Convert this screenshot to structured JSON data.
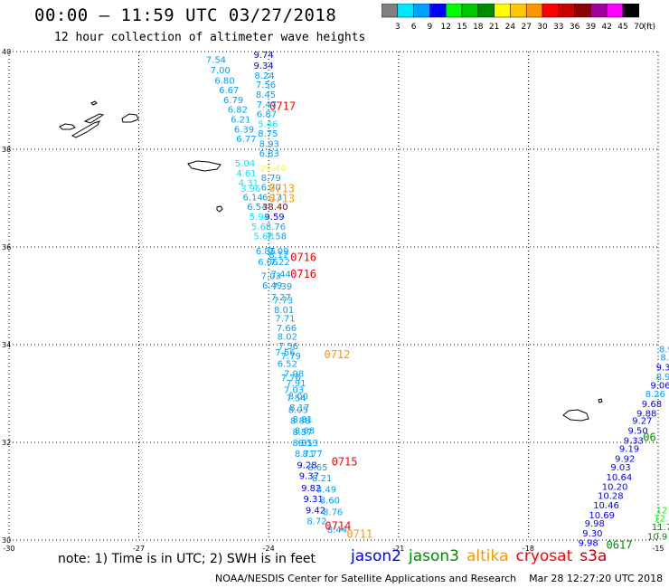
{
  "header": {
    "title": "00:00 – 11:59 UTC 03/27/2018",
    "subtitle": "12 hour collection of altimeter wave heights"
  },
  "color_scale": {
    "unit": "(ft)",
    "bins": [
      {
        "label": "3",
        "color": "#808080"
      },
      {
        "label": "6",
        "color": "#00e8ff"
      },
      {
        "label": "9",
        "color": "#00a0ff"
      },
      {
        "label": "12",
        "color": "#0000ff"
      },
      {
        "label": "15",
        "color": "#00ff00"
      },
      {
        "label": "18",
        "color": "#00c800"
      },
      {
        "label": "21",
        "color": "#008c00"
      },
      {
        "label": "24",
        "color": "#ffff00"
      },
      {
        "label": "27",
        "color": "#ffc800"
      },
      {
        "label": "30",
        "color": "#ff9600"
      },
      {
        "label": "33",
        "color": "#ff0000"
      },
      {
        "label": "36",
        "color": "#c80000"
      },
      {
        "label": "39",
        "color": "#8c0000"
      },
      {
        "label": "42",
        "color": "#a000a0"
      },
      {
        "label": "45",
        "color": "#ff00ff"
      },
      {
        "label": "70",
        "color": "#000000"
      }
    ]
  },
  "map": {
    "lat_range": [
      30,
      40
    ],
    "lon_range": [
      -30,
      -15
    ],
    "lat_ticks": [
      "40",
      "38",
      "36",
      "34",
      "32",
      "30"
    ],
    "lon_ticks": [
      "-30",
      "-27",
      "-24",
      "-21",
      "-18",
      "-15"
    ]
  },
  "measurements": [
    {
      "v": "9.74",
      "lon": -24.35,
      "lat": 39.94,
      "c": "#0000ff"
    },
    {
      "v": "7.54",
      "lon": -25.45,
      "lat": 39.84,
      "c": "#00a0ff"
    },
    {
      "v": "9.34",
      "lon": -24.35,
      "lat": 39.72,
      "c": "#0000ff"
    },
    {
      "v": "7.00",
      "lon": -25.35,
      "lat": 39.63,
      "c": "#00a0ff"
    },
    {
      "v": "8.24",
      "lon": -24.33,
      "lat": 39.52,
      "c": "#00a0ff"
    },
    {
      "v": "6.80",
      "lon": -25.25,
      "lat": 39.42,
      "c": "#00a0ff"
    },
    {
      "v": "7.56",
      "lon": -24.3,
      "lat": 39.33,
      "c": "#00a0ff"
    },
    {
      "v": "6.67",
      "lon": -25.15,
      "lat": 39.22,
      "c": "#00a0ff"
    },
    {
      "v": "8.45",
      "lon": -24.3,
      "lat": 39.13,
      "c": "#00a0ff"
    },
    {
      "v": "6.79",
      "lon": -25.05,
      "lat": 39.02,
      "c": "#00a0ff"
    },
    {
      "v": "7.47",
      "lon": -24.28,
      "lat": 38.93,
      "c": "#00a0ff"
    },
    {
      "v": "6.82",
      "lon": -24.95,
      "lat": 38.82,
      "c": "#00a0ff"
    },
    {
      "v": "6.87",
      "lon": -24.28,
      "lat": 38.73,
      "c": "#00a0ff"
    },
    {
      "v": "6.21",
      "lon": -24.88,
      "lat": 38.62,
      "c": "#00a0ff"
    },
    {
      "v": "5.46",
      "lon": -24.25,
      "lat": 38.53,
      "c": "#00e8ff"
    },
    {
      "v": "6.39",
      "lon": -24.8,
      "lat": 38.42,
      "c": "#00a0ff"
    },
    {
      "v": "8.75",
      "lon": -24.25,
      "lat": 38.33,
      "c": "#00a0ff"
    },
    {
      "v": "6.77",
      "lon": -24.75,
      "lat": 38.22,
      "c": "#00a0ff"
    },
    {
      "v": "8.93",
      "lon": -24.22,
      "lat": 38.12,
      "c": "#00a0ff"
    },
    {
      "v": "6.83",
      "lon": -24.22,
      "lat": 37.93,
      "c": "#00a0ff"
    },
    {
      "v": "5.04",
      "lon": -24.78,
      "lat": 37.72,
      "c": "#00e8ff"
    },
    {
      "v": "22.44",
      "lon": -24.2,
      "lat": 37.62,
      "c": "#ffff00"
    },
    {
      "v": "4.61",
      "lon": -24.75,
      "lat": 37.52,
      "c": "#00e8ff"
    },
    {
      "v": "8.79",
      "lon": -24.18,
      "lat": 37.43,
      "c": "#00a0ff"
    },
    {
      "v": "4.31",
      "lon": -24.7,
      "lat": 37.32,
      "c": "#00e8ff"
    },
    {
      "v": "6.70",
      "lon": -24.18,
      "lat": 37.23,
      "c": "#00a0ff"
    },
    {
      "v": "3.96",
      "lon": -24.65,
      "lat": 37.2,
      "c": "#00e8ff"
    },
    {
      "v": "6.13",
      "lon": -24.15,
      "lat": 37.03,
      "c": "#00a0ff"
    },
    {
      "v": "6.14",
      "lon": -24.6,
      "lat": 37.03,
      "c": "#00a0ff"
    },
    {
      "v": "38.40",
      "lon": -24.15,
      "lat": 36.83,
      "c": "#8c0000"
    },
    {
      "v": "6.54",
      "lon": -24.5,
      "lat": 36.83,
      "c": "#00a0ff"
    },
    {
      "v": "9.59",
      "lon": -24.1,
      "lat": 36.63,
      "c": "#0000ff"
    },
    {
      "v": "5.94",
      "lon": -24.45,
      "lat": 36.63,
      "c": "#00e8ff"
    },
    {
      "v": "8.76",
      "lon": -24.07,
      "lat": 36.43,
      "c": "#00a0ff"
    },
    {
      "v": "5.68",
      "lon": -24.4,
      "lat": 36.43,
      "c": "#00e8ff"
    },
    {
      "v": "7.58",
      "lon": -24.05,
      "lat": 36.23,
      "c": "#00a0ff"
    },
    {
      "v": "5.68",
      "lon": -24.35,
      "lat": 36.23,
      "c": "#00e8ff"
    },
    {
      "v": "7.09",
      "lon": -24.0,
      "lat": 35.93,
      "c": "#00a0ff"
    },
    {
      "v": "6.85",
      "lon": -24.3,
      "lat": 35.93,
      "c": "#00a0ff"
    },
    {
      "v": "8.12",
      "lon": -24.0,
      "lat": 35.85,
      "c": "#00a0ff"
    },
    {
      "v": "6.06",
      "lon": -24.25,
      "lat": 35.7,
      "c": "#00a0ff"
    },
    {
      "v": "7.22",
      "lon": -23.97,
      "lat": 35.7,
      "c": "#00a0ff"
    },
    {
      "v": "7.44",
      "lon": -23.95,
      "lat": 35.45,
      "c": "#00a0ff"
    },
    {
      "v": "7.03",
      "lon": -24.18,
      "lat": 35.42,
      "c": "#00a0ff"
    },
    {
      "v": "6.49",
      "lon": -24.15,
      "lat": 35.22,
      "c": "#00a0ff"
    },
    {
      "v": "7.39",
      "lon": -23.92,
      "lat": 35.2,
      "c": "#00a0ff"
    },
    {
      "v": "7.27",
      "lon": -23.95,
      "lat": 34.98,
      "c": "#00a0ff"
    },
    {
      "v": "7.73",
      "lon": -23.9,
      "lat": 34.92,
      "c": "#00a0ff"
    },
    {
      "v": "8.01",
      "lon": -23.88,
      "lat": 34.72,
      "c": "#00a0ff"
    },
    {
      "v": "7.71",
      "lon": -23.85,
      "lat": 34.55,
      "c": "#00a0ff"
    },
    {
      "v": "7.66",
      "lon": -23.82,
      "lat": 34.35,
      "c": "#00a0ff"
    },
    {
      "v": "8.02",
      "lon": -23.8,
      "lat": 34.18,
      "c": "#00a0ff"
    },
    {
      "v": "7.56",
      "lon": -23.78,
      "lat": 33.98,
      "c": "#00a0ff"
    },
    {
      "v": "7.56",
      "lon": -23.85,
      "lat": 33.85,
      "c": "#00a0ff"
    },
    {
      "v": "7.79",
      "lon": -23.72,
      "lat": 33.78,
      "c": "#00a0ff"
    },
    {
      "v": "6.52",
      "lon": -23.8,
      "lat": 33.62,
      "c": "#00a0ff"
    },
    {
      "v": "7.98",
      "lon": -23.65,
      "lat": 33.42,
      "c": "#00a0ff"
    },
    {
      "v": "7.76",
      "lon": -23.72,
      "lat": 33.33,
      "c": "#00a0ff"
    },
    {
      "v": "7.91",
      "lon": -23.6,
      "lat": 33.22,
      "c": "#00a0ff"
    },
    {
      "v": "7.03",
      "lon": -23.65,
      "lat": 33.08,
      "c": "#00a0ff"
    },
    {
      "v": "8.00",
      "lon": -23.55,
      "lat": 32.95,
      "c": "#00a0ff"
    },
    {
      "v": "7.54",
      "lon": -23.6,
      "lat": 32.92,
      "c": "#00a0ff"
    },
    {
      "v": "8.17",
      "lon": -23.52,
      "lat": 32.72,
      "c": "#00a0ff"
    },
    {
      "v": "8.05",
      "lon": -23.55,
      "lat": 32.68,
      "c": "#00a0ff"
    },
    {
      "v": "8.81",
      "lon": -23.45,
      "lat": 32.48,
      "c": "#00a0ff"
    },
    {
      "v": "8.88",
      "lon": -23.5,
      "lat": 32.45,
      "c": "#00a0ff"
    },
    {
      "v": "8.88",
      "lon": -23.4,
      "lat": 32.25,
      "c": "#00a0ff"
    },
    {
      "v": "8.57",
      "lon": -23.45,
      "lat": 32.22,
      "c": "#00a0ff"
    },
    {
      "v": "8.53",
      "lon": -23.32,
      "lat": 32.0,
      "c": "#00a0ff"
    },
    {
      "v": "8.81",
      "lon": -23.45,
      "lat": 32.0,
      "c": "#00a0ff"
    },
    {
      "v": "8.71",
      "lon": -23.4,
      "lat": 31.78,
      "c": "#00a0ff"
    },
    {
      "v": "8.77",
      "lon": -23.22,
      "lat": 31.78,
      "c": "#00a0ff"
    },
    {
      "v": "9.28",
      "lon": -23.35,
      "lat": 31.55,
      "c": "#0000ff"
    },
    {
      "v": "8.65",
      "lon": -23.1,
      "lat": 31.5,
      "c": "#00a0ff"
    },
    {
      "v": "9.37",
      "lon": -23.3,
      "lat": 31.32,
      "c": "#0000ff"
    },
    {
      "v": "8.21",
      "lon": -23.0,
      "lat": 31.28,
      "c": "#00a0ff"
    },
    {
      "v": "9.82",
      "lon": -23.25,
      "lat": 31.07,
      "c": "#0000ff"
    },
    {
      "v": "8.49",
      "lon": -22.9,
      "lat": 31.05,
      "c": "#00a0ff"
    },
    {
      "v": "9.31",
      "lon": -23.2,
      "lat": 30.85,
      "c": "#0000ff"
    },
    {
      "v": "8.60",
      "lon": -22.82,
      "lat": 30.82,
      "c": "#00a0ff"
    },
    {
      "v": "9.42",
      "lon": -23.15,
      "lat": 30.62,
      "c": "#0000ff"
    },
    {
      "v": "8.76",
      "lon": -22.75,
      "lat": 30.58,
      "c": "#00a0ff"
    },
    {
      "v": "8.72",
      "lon": -23.12,
      "lat": 30.4,
      "c": "#00a0ff"
    },
    {
      "v": "8.44",
      "lon": -22.65,
      "lat": 30.22,
      "c": "#00a0ff"
    },
    {
      "v": "8.9",
      "lon": -14.98,
      "lat": 33.92,
      "c": "#00a0ff"
    },
    {
      "v": "8.",
      "lon": -14.95,
      "lat": 33.75,
      "c": "#00a0ff"
    },
    {
      "v": "9.3",
      "lon": -15.05,
      "lat": 33.55,
      "c": "#0000ff"
    },
    {
      "v": "8.9",
      "lon": -15.05,
      "lat": 33.35,
      "c": "#00a0ff"
    },
    {
      "v": "9.06",
      "lon": -15.18,
      "lat": 33.18,
      "c": "#0000ff"
    },
    {
      "v": "8.26",
      "lon": -15.3,
      "lat": 33.0,
      "c": "#00a0ff"
    },
    {
      "v": "9.68",
      "lon": -15.38,
      "lat": 32.8,
      "c": "#0000ff"
    },
    {
      "v": "9.88",
      "lon": -15.5,
      "lat": 32.6,
      "c": "#0000ff"
    },
    {
      "v": "9.27",
      "lon": -15.6,
      "lat": 32.45,
      "c": "#0000ff"
    },
    {
      "v": "9.50",
      "lon": -15.7,
      "lat": 32.25,
      "c": "#0000ff"
    },
    {
      "v": "9.33",
      "lon": -15.8,
      "lat": 32.05,
      "c": "#0000ff"
    },
    {
      "v": "9.19",
      "lon": -15.9,
      "lat": 31.88,
      "c": "#0000ff"
    },
    {
      "v": "9.92",
      "lon": -16.0,
      "lat": 31.68,
      "c": "#0000ff"
    },
    {
      "v": "9.03",
      "lon": -16.1,
      "lat": 31.5,
      "c": "#0000ff"
    },
    {
      "v": "10.64",
      "lon": -16.2,
      "lat": 31.3,
      "c": "#0000ff"
    },
    {
      "v": "10.20",
      "lon": -16.3,
      "lat": 31.1,
      "c": "#0000ff"
    },
    {
      "v": "10.28",
      "lon": -16.4,
      "lat": 30.92,
      "c": "#0000ff"
    },
    {
      "v": "10.46",
      "lon": -16.5,
      "lat": 30.72,
      "c": "#0000ff"
    },
    {
      "v": "10.69",
      "lon": -16.6,
      "lat": 30.52,
      "c": "#0000ff"
    },
    {
      "v": "9.98",
      "lon": -16.7,
      "lat": 30.35,
      "c": "#0000ff"
    },
    {
      "v": "9.30",
      "lon": -16.75,
      "lat": 30.15,
      "c": "#0000ff"
    },
    {
      "v": "9.98",
      "lon": -16.85,
      "lat": 29.95,
      "c": "#0000ff"
    },
    {
      "v": "12",
      "lon": -15.05,
      "lat": 30.62,
      "c": "#00ff00"
    },
    {
      "v": "12.",
      "lon": -15.1,
      "lat": 30.45,
      "c": "#00ff00"
    },
    {
      "v": "11.7",
      "lon": -15.15,
      "lat": 30.28,
      "c": "#008c00"
    },
    {
      "v": "10.9",
      "lon": -15.25,
      "lat": 30.08,
      "c": "#008c00"
    }
  ],
  "pass_labels": [
    {
      "text": "0717",
      "lon": -23.98,
      "lat": 38.88,
      "c": "#ff0000"
    },
    {
      "text": "0713",
      "lon": -24.0,
      "lat": 37.19,
      "c": "#ff9600"
    },
    {
      "text": "0713",
      "lon": -24.0,
      "lat": 36.99,
      "c": "#ff9600"
    },
    {
      "text": "0716",
      "lon": -23.5,
      "lat": 35.79,
      "c": "#ff0000"
    },
    {
      "text": "0716",
      "lon": -23.5,
      "lat": 35.44,
      "c": "#ff0000"
    },
    {
      "text": "0712",
      "lon": -22.72,
      "lat": 33.8,
      "c": "#ff9600"
    },
    {
      "text": "0715",
      "lon": -22.55,
      "lat": 31.6,
      "c": "#ff0000"
    },
    {
      "text": "0714",
      "lon": -22.7,
      "lat": 30.29,
      "c": "#ff0000"
    },
    {
      "text": "0711",
      "lon": -22.2,
      "lat": 30.12,
      "c": "#ff9600"
    },
    {
      "text": "0617",
      "lon": -16.2,
      "lat": 29.9,
      "c": "#008c00"
    },
    {
      "text": "06",
      "lon": -15.35,
      "lat": 32.1,
      "c": "#008c00"
    }
  ],
  "note": "note: 1) Time is in UTC; 2) SWH is in feet",
  "satellites": [
    {
      "name": "jason2",
      "color": "#0000ff"
    },
    {
      "name": "jason3",
      "color": "#008c00"
    },
    {
      "name": "altika",
      "color": "#ff9600"
    },
    {
      "name": "cryosat",
      "color": "#ff0000"
    },
    {
      "name": "s3a",
      "color": "#c80000"
    }
  ],
  "footer": "NOAA/NESDIS Center for Satellite Applications and Research    Mar 28 12:27:20 UTC 2018"
}
